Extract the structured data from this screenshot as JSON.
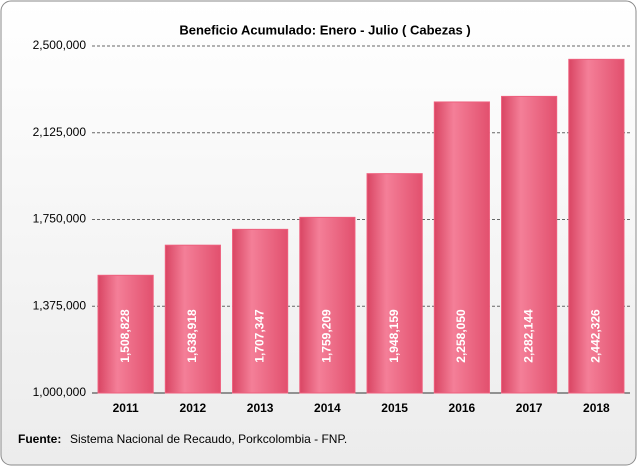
{
  "chart_data": {
    "type": "bar",
    "title": "Beneficio Acumulado:  Enero - Julio ( Cabezas )",
    "categories": [
      "2011",
      "2012",
      "2013",
      "2014",
      "2015",
      "2016",
      "2017",
      "2018"
    ],
    "values": [
      1508828,
      1638918,
      1707347,
      1759209,
      1948159,
      2258050,
      2282144,
      2442326
    ],
    "value_labels": [
      "1,508,828",
      "1,638,918",
      "1,707,347",
      "1,759,209",
      "1,948,159",
      "2,258,050",
      "2,282,144",
      "2,442,326"
    ],
    "color": "#ee5f7d",
    "ylim": [
      1000000,
      2500000
    ],
    "yticks": [
      {
        "value": 1000000,
        "label": "1,000,000"
      },
      {
        "value": 1375000,
        "label": "1,375,000"
      },
      {
        "value": 1750000,
        "label": "1,750,000"
      },
      {
        "value": 2125000,
        "label": "2,125,000"
      },
      {
        "value": 2500000,
        "label": "2,500,000"
      }
    ],
    "grid": true,
    "source_label": "Fuente:",
    "source": "Sistema Nacional de Recaudo, Porkcolombia - FNP."
  }
}
